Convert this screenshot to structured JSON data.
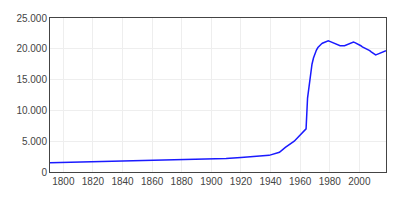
{
  "chart_data": {
    "type": "line",
    "x": [
      1791,
      1800,
      1810,
      1820,
      1830,
      1840,
      1850,
      1860,
      1870,
      1880,
      1890,
      1900,
      1910,
      1920,
      1925,
      1933,
      1939,
      1946,
      1950,
      1956,
      1961,
      1964,
      1965,
      1966,
      1967,
      1968,
      1969,
      1970,
      1971,
      1972,
      1973,
      1974,
      1975,
      1976,
      1977,
      1978,
      1979,
      1980,
      1981,
      1982,
      1983,
      1984,
      1985,
      1986,
      1987,
      1990,
      1991,
      1992,
      1993,
      1994,
      1995,
      1996,
      1997,
      1998,
      1999,
      2000,
      2001,
      2002,
      2003,
      2004,
      2005,
      2006,
      2007,
      2008,
      2009,
      2010,
      2011,
      2012,
      2013,
      2014,
      2015,
      2016,
      2017,
      2018
    ],
    "values": [
      1500,
      1550,
      1600,
      1650,
      1700,
      1750,
      1800,
      1850,
      1900,
      1950,
      2000,
      2100,
      2200,
      2350,
      2450,
      2550,
      2700,
      3200,
      4000,
      5000,
      6200,
      7000,
      12000,
      14000,
      16000,
      17500,
      18500,
      19200,
      19800,
      20200,
      20500,
      20700,
      20900,
      21000,
      21100,
      21200,
      21300,
      21200,
      21100,
      21000,
      20900,
      20800,
      20700,
      20600,
      20500,
      20500,
      20600,
      20700,
      20800,
      20900,
      21000,
      21100,
      21000,
      20900,
      20800,
      20700,
      20500,
      20300,
      20200,
      20100,
      20000,
      19900,
      19700,
      19500,
      19300,
      19200,
      19000,
      19100,
      19200,
      19300,
      19400,
      19500,
      19600,
      19700
    ],
    "color": "#1a1aff",
    "xlim": [
      1791,
      2018
    ],
    "xticks": [
      1800,
      1820,
      1840,
      1860,
      1880,
      1900,
      1920,
      1940,
      1960,
      1980,
      2000
    ],
    "ylim": [
      0,
      25000
    ],
    "yticks": [
      0,
      {
        "value": 5000,
        "label": "5.000"
      },
      {
        "value": 10000,
        "label": "10.000"
      },
      {
        "value": 15000,
        "label": "15.000"
      },
      {
        "value": 20000,
        "label": "20.000"
      },
      {
        "value": 25000,
        "label": "25.000"
      }
    ],
    "grid": true
  }
}
